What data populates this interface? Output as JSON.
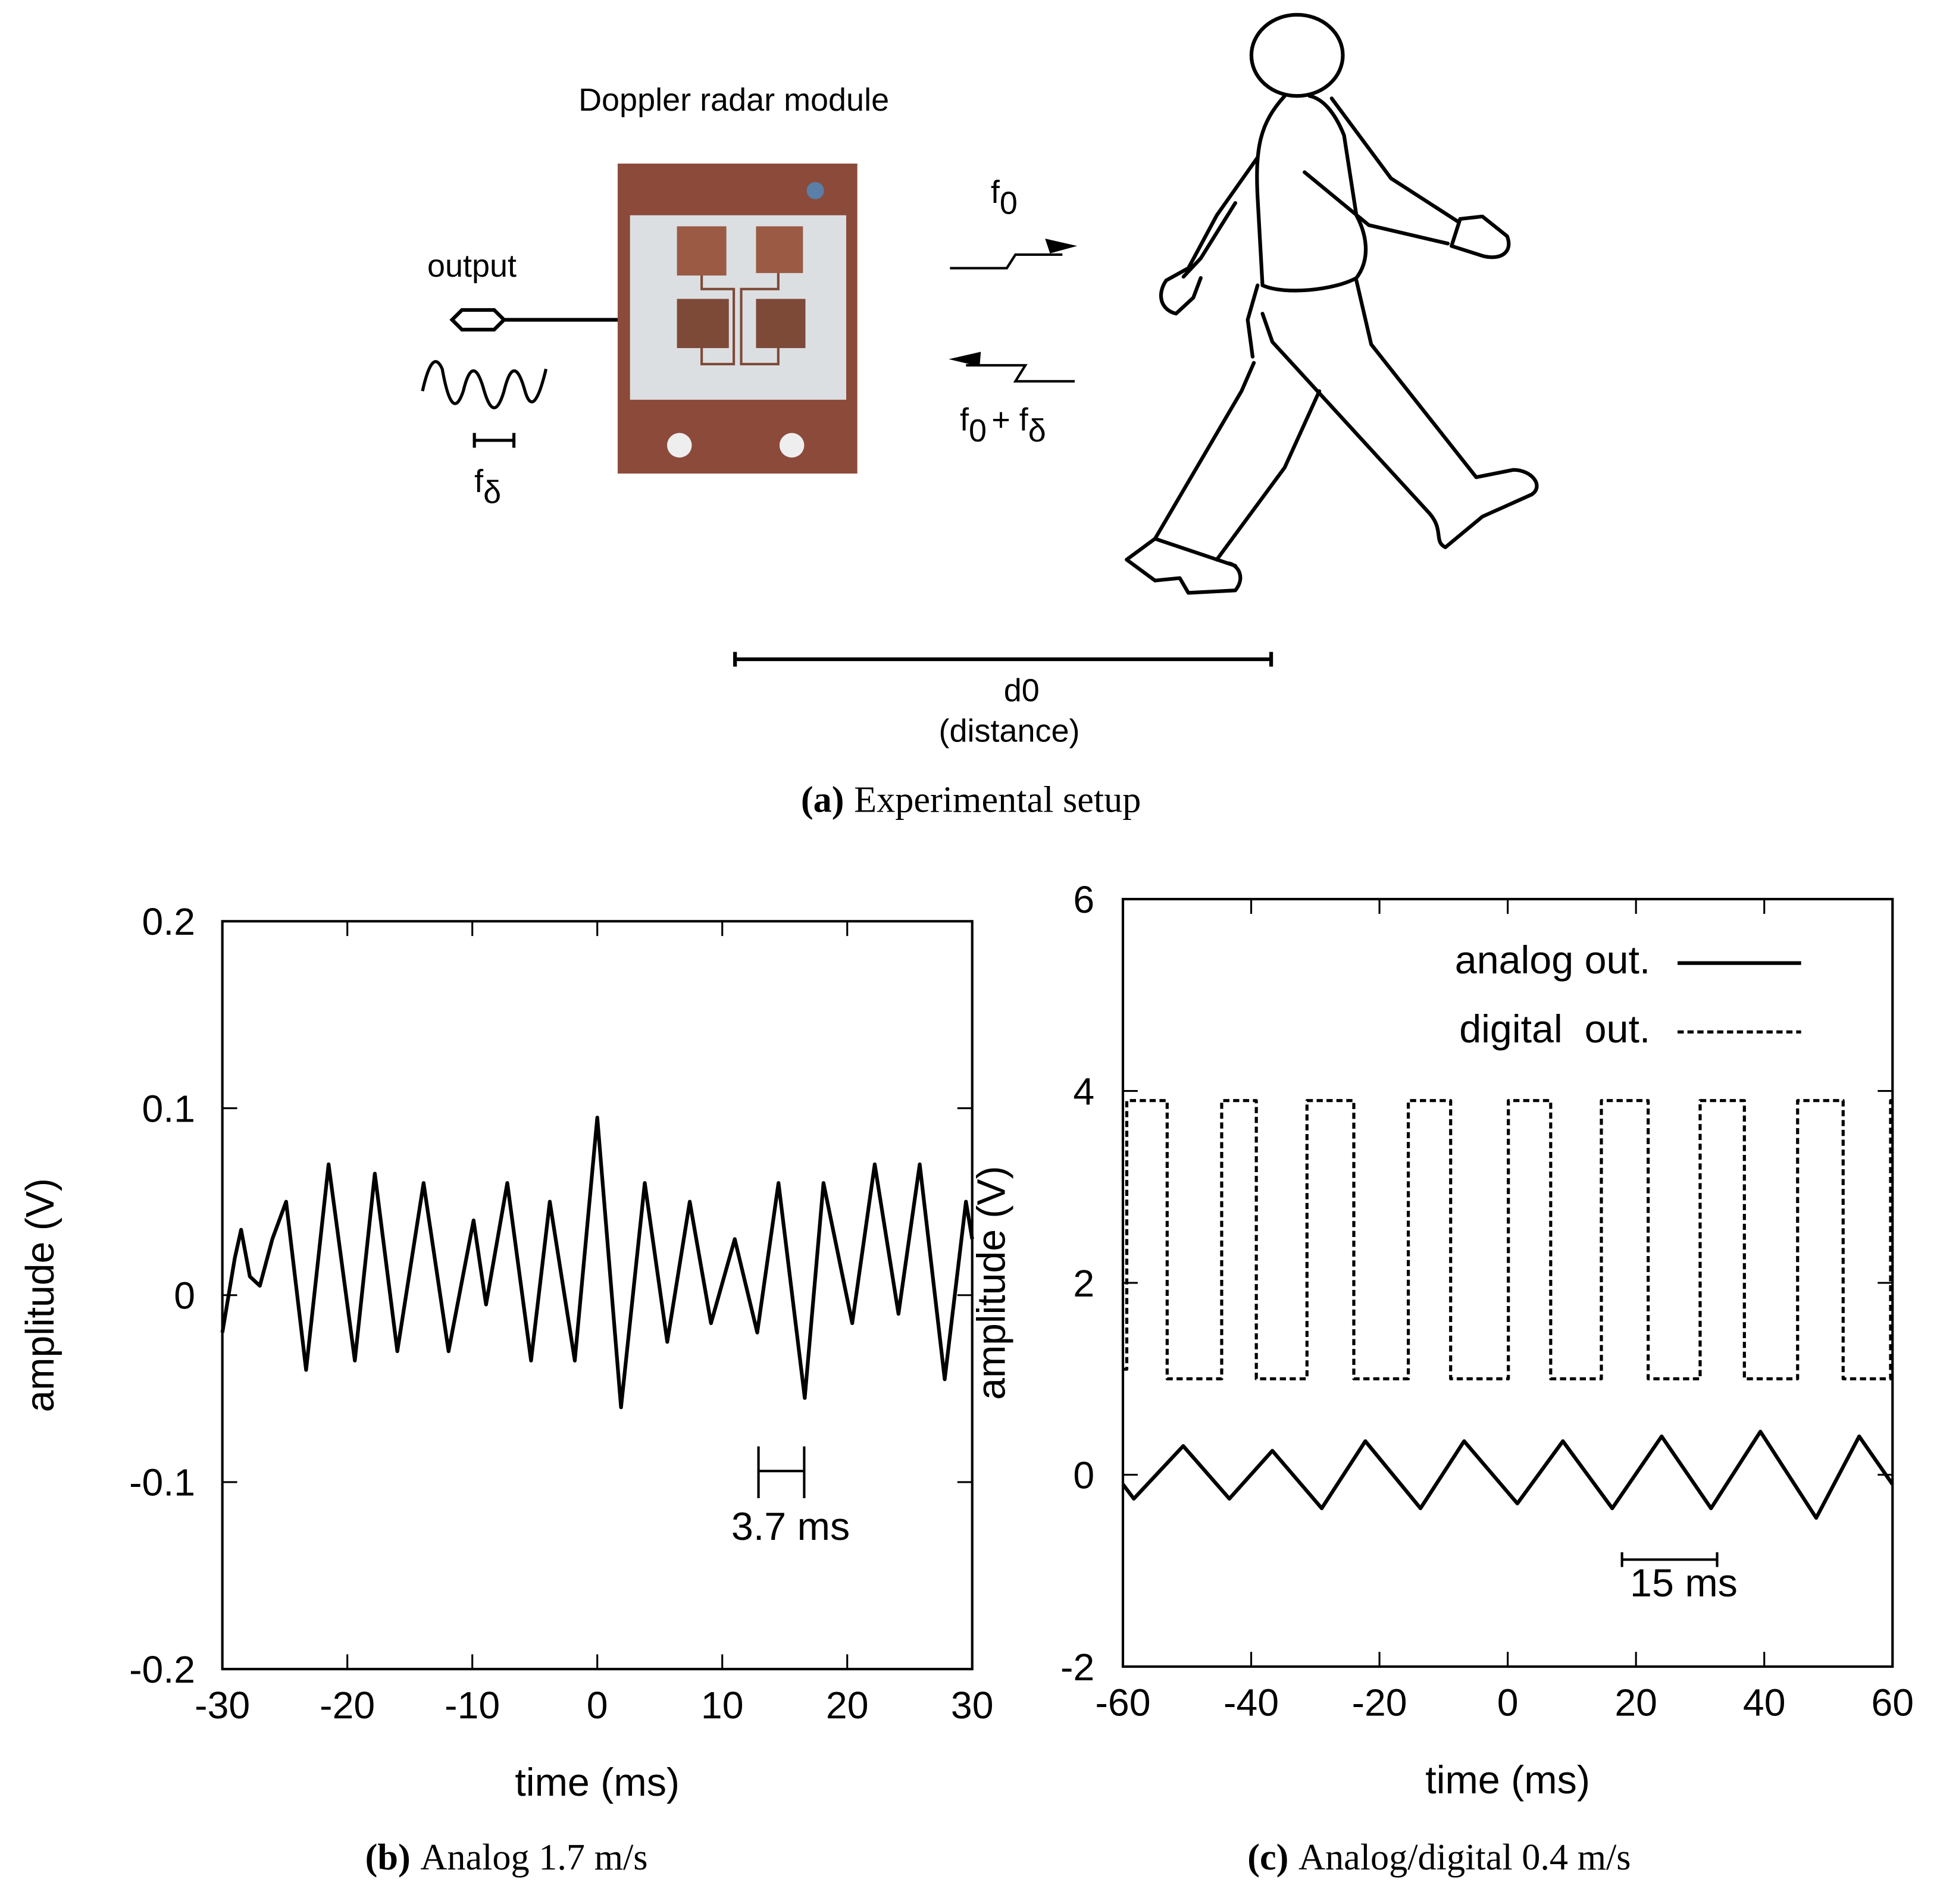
{
  "figure_a": {
    "title": "Doppler radar module",
    "output_label": "output",
    "f_delta": {
      "base": "f",
      "sub": "δ"
    },
    "f_tx": {
      "base": "f",
      "sub": "0"
    },
    "f_rx": {
      "base": "f",
      "sub": "0",
      "rest": "+ f",
      "rest_sub": "δ"
    },
    "distance": "d0",
    "distance_note": "(distance)",
    "caption_tag": "(a)",
    "caption": "Experimental setup"
  },
  "chart_data": [
    {
      "type": "line",
      "x_label": "time (ms)",
      "y_label": "amplitude (V)",
      "caption_tag": "(b)",
      "caption": "Analog 1.7 m/s",
      "annotation": "3.7 ms",
      "xlim": [
        -30,
        30
      ],
      "ylim": [
        -0.2,
        0.2
      ],
      "xticks": [
        -30,
        -20,
        -10,
        0,
        10,
        20,
        30
      ],
      "yticks": [
        -0.2,
        -0.1,
        0,
        0.1,
        0.2
      ],
      "color": "#000000",
      "x": [
        -30,
        -29,
        -28.5,
        -27.8,
        -27,
        -26,
        -24.9,
        -23.3,
        -21.5,
        -19.4,
        -17.8,
        -16.0,
        -13.9,
        -11.9,
        -9.9,
        -8.9,
        -7.2,
        -5.3,
        -3.8,
        -1.8,
        0.0,
        1.9,
        3.8,
        5.6,
        7.4,
        9.1,
        11.0,
        12.8,
        14.5,
        16.6,
        18.1,
        20.4,
        22.2,
        24.1,
        25.8,
        27.8,
        29.5,
        30
      ],
      "values": [
        -0.02,
        0.02,
        0.035,
        0.01,
        0.005,
        0.03,
        0.05,
        -0.04,
        0.07,
        -0.035,
        0.065,
        -0.03,
        0.06,
        -0.03,
        0.04,
        -0.005,
        0.06,
        -0.035,
        0.05,
        -0.035,
        0.095,
        -0.06,
        0.06,
        -0.025,
        0.05,
        -0.015,
        0.03,
        -0.02,
        0.06,
        -0.055,
        0.06,
        -0.015,
        0.07,
        -0.01,
        0.07,
        -0.045,
        0.05,
        0.03
      ]
    },
    {
      "type": "line",
      "x_label": "time (ms)",
      "y_label": "amplitude (V)",
      "caption_tag": "(c)",
      "caption": "Analog/digital 0.4 m/s",
      "annotation": "15 ms",
      "xlim": [
        -60,
        60
      ],
      "ylim": [
        -2,
        6
      ],
      "xticks": [
        -60,
        -40,
        -20,
        0,
        20,
        40,
        60
      ],
      "yticks": [
        -2,
        0,
        2,
        4,
        6
      ],
      "legend": "upper right",
      "series": [
        {
          "name": "analog out.",
          "color": "#000000",
          "dash": "solid",
          "x": [
            -60,
            -58.3,
            -50.6,
            -43.4,
            -36.7,
            -29.0,
            -22.2,
            -13.6,
            -6.8,
            1.5,
            8.6,
            16.3,
            24.0,
            31.7,
            39.4,
            48.1,
            54.8,
            60
          ],
          "values": [
            -0.1,
            -0.25,
            0.3,
            -0.25,
            0.25,
            -0.35,
            0.35,
            -0.35,
            0.35,
            -0.3,
            0.35,
            -0.35,
            0.4,
            -0.35,
            0.45,
            -0.45,
            0.4,
            -0.1
          ]
        },
        {
          "name": "digital  out.",
          "color": "#000000",
          "dash": "dashed",
          "x": [
            -60,
            -59.4,
            -59.4,
            -53.1,
            -53.1,
            -44.6,
            -44.6,
            -39.2,
            -39.2,
            -31.3,
            -31.3,
            -24.0,
            -24.0,
            -15.5,
            -15.5,
            -8.9,
            -8.9,
            0.1,
            0.1,
            6.7,
            6.7,
            14.6,
            14.6,
            21.9,
            21.9,
            30.0,
            30.0,
            36.9,
            36.9,
            45.2,
            45.2,
            52.3,
            52.3,
            59.7,
            59.7,
            60
          ],
          "values": [
            1.1,
            1.1,
            3.9,
            3.9,
            1.0,
            1.0,
            3.9,
            3.9,
            1.0,
            1.0,
            3.9,
            3.9,
            1.0,
            1.0,
            3.9,
            3.9,
            1.0,
            1.0,
            3.9,
            3.9,
            1.0,
            1.0,
            3.9,
            3.9,
            1.0,
            1.0,
            3.9,
            3.9,
            1.0,
            1.0,
            3.9,
            3.9,
            1.0,
            1.0,
            3.9,
            3.9
          ]
        }
      ]
    }
  ]
}
